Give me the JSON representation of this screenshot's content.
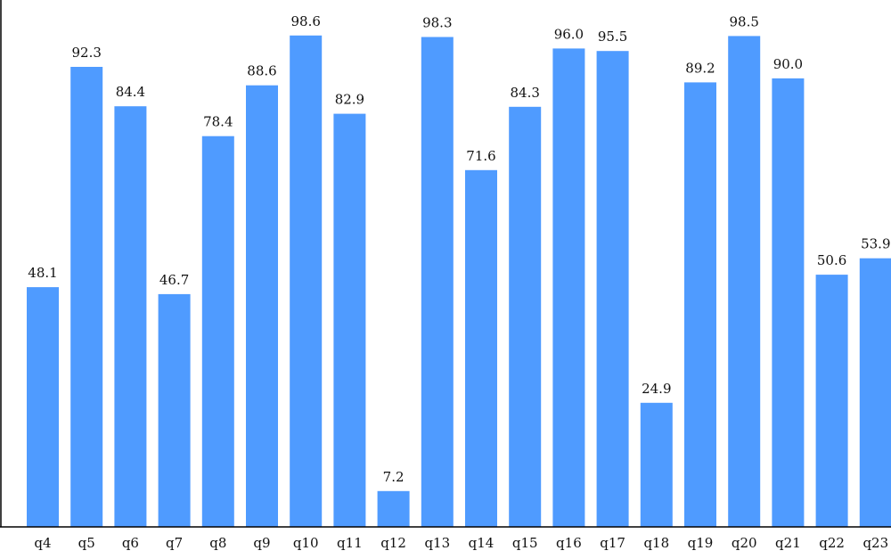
{
  "chart_data": {
    "type": "bar",
    "categories": [
      "q4",
      "q5",
      "q6",
      "q7",
      "q8",
      "q9",
      "q10",
      "q11",
      "q12",
      "q13",
      "q14",
      "q15",
      "q16",
      "q17",
      "q18",
      "q19",
      "q20",
      "q21",
      "q22",
      "q23"
    ],
    "values": [
      48.1,
      92.3,
      84.4,
      46.7,
      78.4,
      88.6,
      98.6,
      82.9,
      7.2,
      98.3,
      71.6,
      84.3,
      96.0,
      95.5,
      24.9,
      89.2,
      98.5,
      90.0,
      50.6,
      53.9
    ],
    "value_labels": [
      "48.1",
      "92.3",
      "84.4",
      "46.7",
      "78.4",
      "88.6",
      "98.6",
      "82.9",
      "7.2",
      "98.3",
      "71.6",
      "84.3",
      "96.0",
      "95.5",
      "24.9",
      "89.2",
      "98.5",
      "90.0",
      "50.6",
      "53.9"
    ],
    "ylim": [
      0,
      100
    ],
    "grid": false,
    "bar_color": "#4f9bff"
  }
}
